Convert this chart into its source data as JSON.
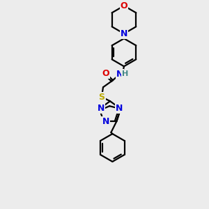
{
  "bg_color": "#ececec",
  "atom_colors": {
    "C": "#000000",
    "N": "#0000dd",
    "O": "#dd0000",
    "S": "#bbaa00",
    "H": "#448888",
    "bond": "#000000"
  },
  "figsize": [
    3.0,
    3.0
  ],
  "dpi": 100
}
